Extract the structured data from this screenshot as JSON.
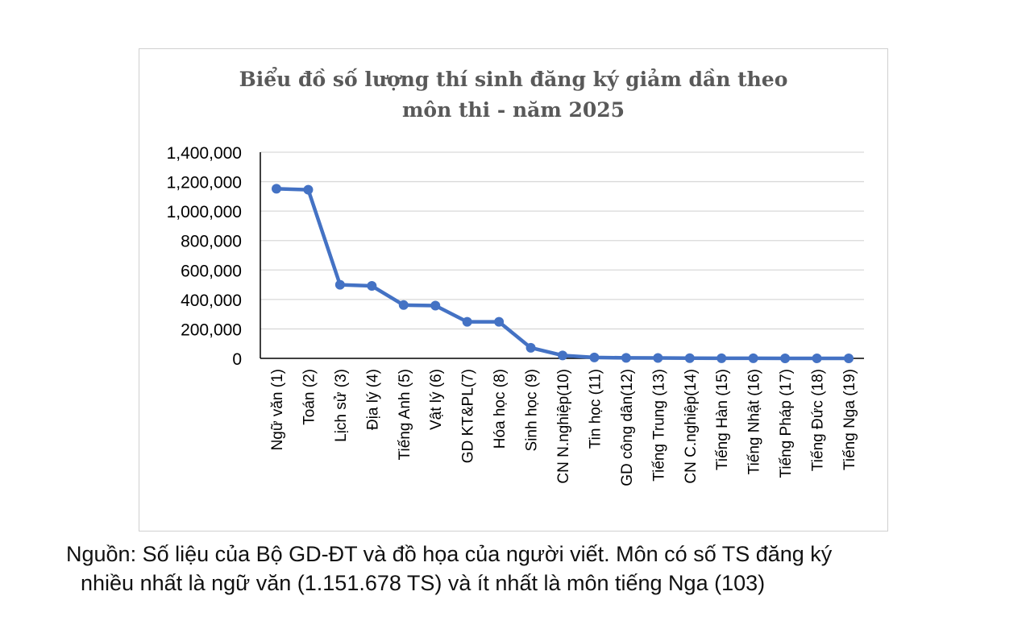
{
  "chart_data": {
    "type": "line",
    "title_lines": [
      "Biểu đồ số lượng thí sinh đăng ký giảm dần theo",
      "môn thi - năm 2025"
    ],
    "categories": [
      "Ngữ văn (1)",
      "Toán (2)",
      "Lịch sử (3)",
      "Địa lý (4)",
      "Tiếng Anh (5)",
      "Vật lý (6)",
      "GD KT&PL(7)",
      "Hóa học (8)",
      "Sinh học (9)",
      "CN N.nghiệp(10)",
      "Tin học (11)",
      "GD công dân(12)",
      "Tiếng Trung (13)",
      "CN C.nghiệp(14)",
      "Tiếng Hàn (15)",
      "Tiếng Nhật (16)",
      "Tiếng Pháp (17)",
      "Tiếng Đức (18)",
      "Tiếng Nga (19)"
    ],
    "values": [
      1151678,
      1145000,
      500000,
      492000,
      362000,
      358000,
      248000,
      248000,
      72000,
      20000,
      6000,
      3500,
      2500,
      1500,
      800,
      600,
      300,
      200,
      103
    ],
    "yticks": [
      "1,400,000",
      "1,200,000",
      "1,000,000",
      "800,000",
      "600,000",
      "400,000",
      "200,000",
      "0"
    ],
    "ylim": [
      0,
      1400000
    ],
    "grid": true,
    "legend": "none",
    "line_color": "#4472C4"
  },
  "caption": {
    "line1": "Nguồn: Số liệu của Bộ GD-ĐT và đồ họa của người viết. Môn có số TS đăng ký",
    "line2": "nhiều nhất là ngữ văn (1.151.678 TS) và ít nhất là môn tiếng Nga (103)"
  }
}
